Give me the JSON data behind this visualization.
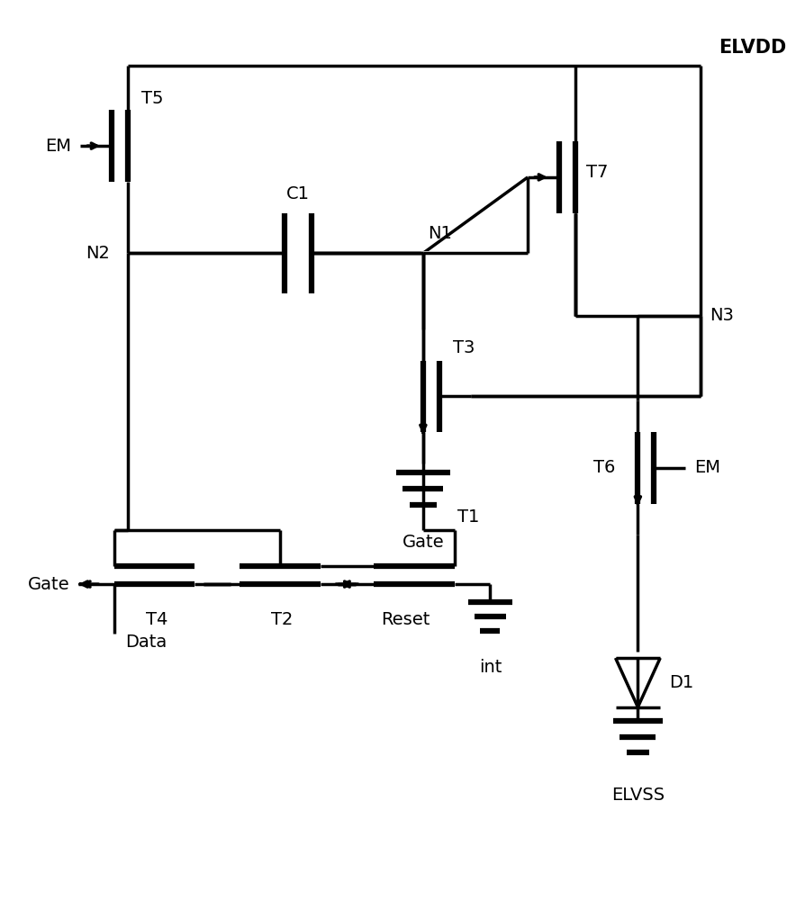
{
  "background_color": "#ffffff",
  "line_color": "#000000",
  "lw": 2.5,
  "lw_thick": 4.5,
  "fs": 14,
  "figsize": [
    8.95,
    10.0
  ],
  "dpi": 100,
  "xlim": [
    0,
    89.5
  ],
  "ylim": [
    0,
    100
  ]
}
